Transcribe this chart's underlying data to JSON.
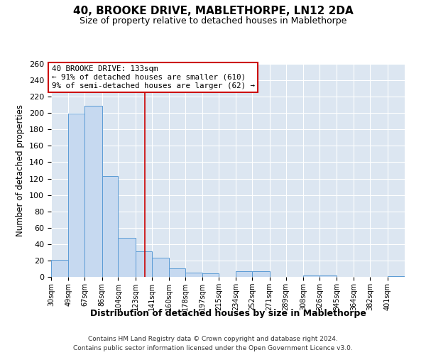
{
  "title": "40, BROOKE DRIVE, MABLETHORPE, LN12 2DA",
  "subtitle": "Size of property relative to detached houses in Mablethorpe",
  "xlabel": "Distribution of detached houses by size in Mablethorpe",
  "ylabel": "Number of detached properties",
  "footer_line1": "Contains HM Land Registry data © Crown copyright and database right 2024.",
  "footer_line2": "Contains public sector information licensed under the Open Government Licence v3.0.",
  "bar_labels": [
    "30sqm",
    "49sqm",
    "67sqm",
    "86sqm",
    "104sqm",
    "123sqm",
    "141sqm",
    "160sqm",
    "178sqm",
    "197sqm",
    "215sqm",
    "234sqm",
    "252sqm",
    "271sqm",
    "289sqm",
    "308sqm",
    "326sqm",
    "345sqm",
    "364sqm",
    "382sqm",
    "401sqm"
  ],
  "bar_values": [
    21,
    199,
    209,
    123,
    48,
    31,
    23,
    10,
    5,
    4,
    0,
    7,
    7,
    0,
    0,
    2,
    2,
    0,
    0,
    0,
    1
  ],
  "bar_color": "#c6d9f0",
  "bar_edge_color": "#5b9bd5",
  "background_color": "#dce6f1",
  "grid_color": "#ffffff",
  "reference_line_x": 133,
  "bin_edges": [
    30,
    49,
    67,
    86,
    104,
    123,
    141,
    160,
    178,
    197,
    215,
    234,
    252,
    271,
    289,
    308,
    326,
    345,
    364,
    382,
    401,
    420
  ],
  "annotation_title": "40 BROOKE DRIVE: 133sqm",
  "annotation_line1": "← 91% of detached houses are smaller (610)",
  "annotation_line2": "9% of semi-detached houses are larger (62) →",
  "annotation_box_facecolor": "#ffffff",
  "annotation_box_edgecolor": "#cc0000",
  "ylim": [
    0,
    260
  ],
  "yticks": [
    0,
    20,
    40,
    60,
    80,
    100,
    120,
    140,
    160,
    180,
    200,
    220,
    240,
    260
  ],
  "fig_facecolor": "#ffffff"
}
